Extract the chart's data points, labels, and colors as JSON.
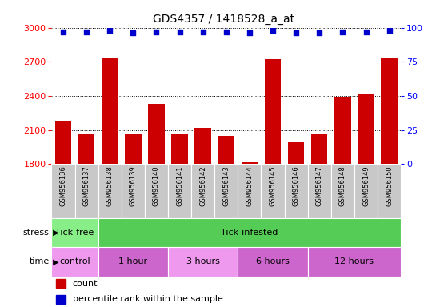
{
  "title": "GDS4357 / 1418528_a_at",
  "samples": [
    "GSM956136",
    "GSM956137",
    "GSM956138",
    "GSM956139",
    "GSM956140",
    "GSM956141",
    "GSM956142",
    "GSM956143",
    "GSM956144",
    "GSM956145",
    "GSM956146",
    "GSM956147",
    "GSM956148",
    "GSM956149",
    "GSM956150"
  ],
  "counts": [
    2180,
    2060,
    2730,
    2060,
    2330,
    2060,
    2120,
    2050,
    1820,
    2720,
    1990,
    2060,
    2390,
    2420,
    2740
  ],
  "percentile": [
    97,
    97,
    98,
    96,
    97,
    97,
    97,
    97,
    96,
    98,
    96,
    96,
    97,
    97,
    98
  ],
  "bar_color": "#CC0000",
  "dot_color": "#0000CC",
  "ylim_left": [
    1800,
    3000
  ],
  "ylim_right": [
    0,
    100
  ],
  "yticks_left": [
    1800,
    2100,
    2400,
    2700,
    3000
  ],
  "yticks_right": [
    0,
    25,
    50,
    75,
    100
  ],
  "stress_groups": [
    {
      "label": "Tick-free",
      "start": 0,
      "end": 2,
      "color": "#88EE88"
    },
    {
      "label": "Tick-infested",
      "start": 2,
      "end": 15,
      "color": "#55CC55"
    }
  ],
  "time_groups": [
    {
      "label": "control",
      "start": 0,
      "end": 2
    },
    {
      "label": "1 hour",
      "start": 2,
      "end": 5
    },
    {
      "label": "3 hours",
      "start": 5,
      "end": 8
    },
    {
      "label": "6 hours",
      "start": 8,
      "end": 11
    },
    {
      "label": "12 hours",
      "start": 11,
      "end": 15
    }
  ],
  "time_colors": [
    "#EE99EE",
    "#CC66CC",
    "#EE99EE",
    "#CC66CC",
    "#CC66CC"
  ],
  "stress_label": "stress",
  "time_label": "time",
  "legend_count_label": "count",
  "legend_pct_label": "percentile rank within the sample",
  "tick_area_color": "#C8C8C8",
  "bg_color": "#FFFFFF"
}
